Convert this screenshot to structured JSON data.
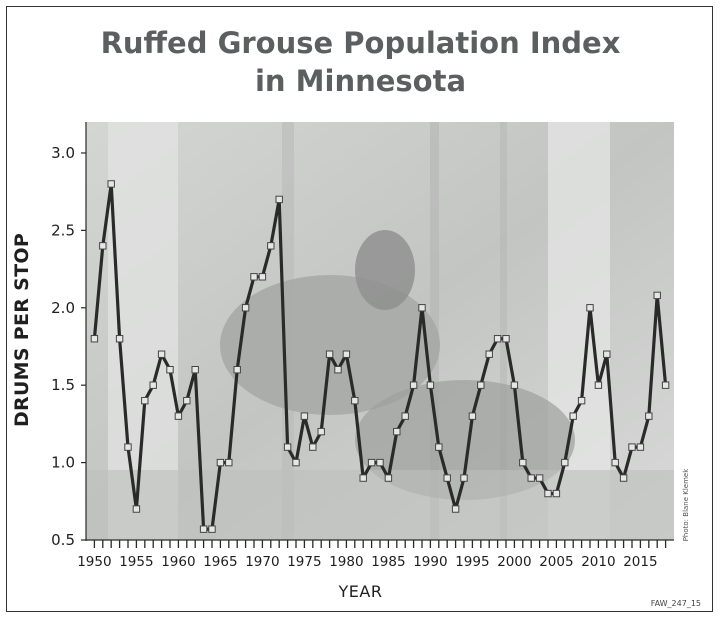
{
  "chart_data": {
    "type": "line",
    "title_lines": [
      "Ruffed Grouse Population Index",
      "in Minnesota"
    ],
    "xlabel": "YEAR",
    "ylabel": "DRUMS PER STOP",
    "xlim": [
      1949,
      2019
    ],
    "ylim": [
      0.5,
      3.2
    ],
    "xticks": [
      "1950",
      "1955",
      "1960",
      "1965",
      "1970",
      "1975",
      "1980",
      "1985",
      "1990",
      "1995",
      "2000",
      "2005",
      "2010",
      "2015"
    ],
    "yticks": [
      "0.5",
      "1.0",
      "1.5",
      "2.0",
      "2.5",
      "3.0"
    ],
    "grid": false,
    "series": [
      {
        "x": [
          1950,
          1951,
          1952,
          1953,
          1954,
          1955,
          1956,
          1957,
          1958,
          1959,
          1960,
          1961,
          1962,
          1963,
          1964,
          1965,
          1966,
          1967,
          1968,
          1969,
          1970,
          1971,
          1972,
          1973,
          1974,
          1975,
          1976,
          1977,
          1978,
          1979,
          1980,
          1981,
          1982,
          1983,
          1984,
          1985,
          1986,
          1987,
          1988,
          1989,
          1990,
          1991,
          1992,
          1993,
          1994,
          1995,
          1996,
          1997,
          1998,
          1999,
          2000,
          2001,
          2002,
          2003,
          2004,
          2005,
          2006,
          2007,
          2008,
          2009,
          2010,
          2011,
          2012,
          2013,
          2014,
          2015,
          2016,
          2017,
          2018
        ],
        "values": [
          1.8,
          2.4,
          2.8,
          1.8,
          1.1,
          0.7,
          1.4,
          1.5,
          1.7,
          1.6,
          1.3,
          1.4,
          1.6,
          0.57,
          0.57,
          1.0,
          1.0,
          1.6,
          2.0,
          2.2,
          2.2,
          2.4,
          2.7,
          1.1,
          1.0,
          1.3,
          1.1,
          1.2,
          1.7,
          1.6,
          1.7,
          1.4,
          0.9,
          1.0,
          1.0,
          0.9,
          1.2,
          1.3,
          1.5,
          2.0,
          1.5,
          1.1,
          0.9,
          0.7,
          0.9,
          1.3,
          1.5,
          1.7,
          1.8,
          1.8,
          1.5,
          1.0,
          0.9,
          0.9,
          0.8,
          0.8,
          1.0,
          1.3,
          1.4,
          2.0,
          1.5,
          1.7,
          1.0,
          0.9,
          1.1,
          1.1,
          1.3,
          2.08,
          1.5
        ]
      }
    ],
    "colors": {
      "line": "#2a2a2a",
      "marker_fill": "#e6e6e6",
      "background_photo": "#c9cbc9",
      "title": "#5b5f5f"
    }
  },
  "photo_credit": "Photo: Blane Klemek",
  "figure_code": "FAW_247_15"
}
